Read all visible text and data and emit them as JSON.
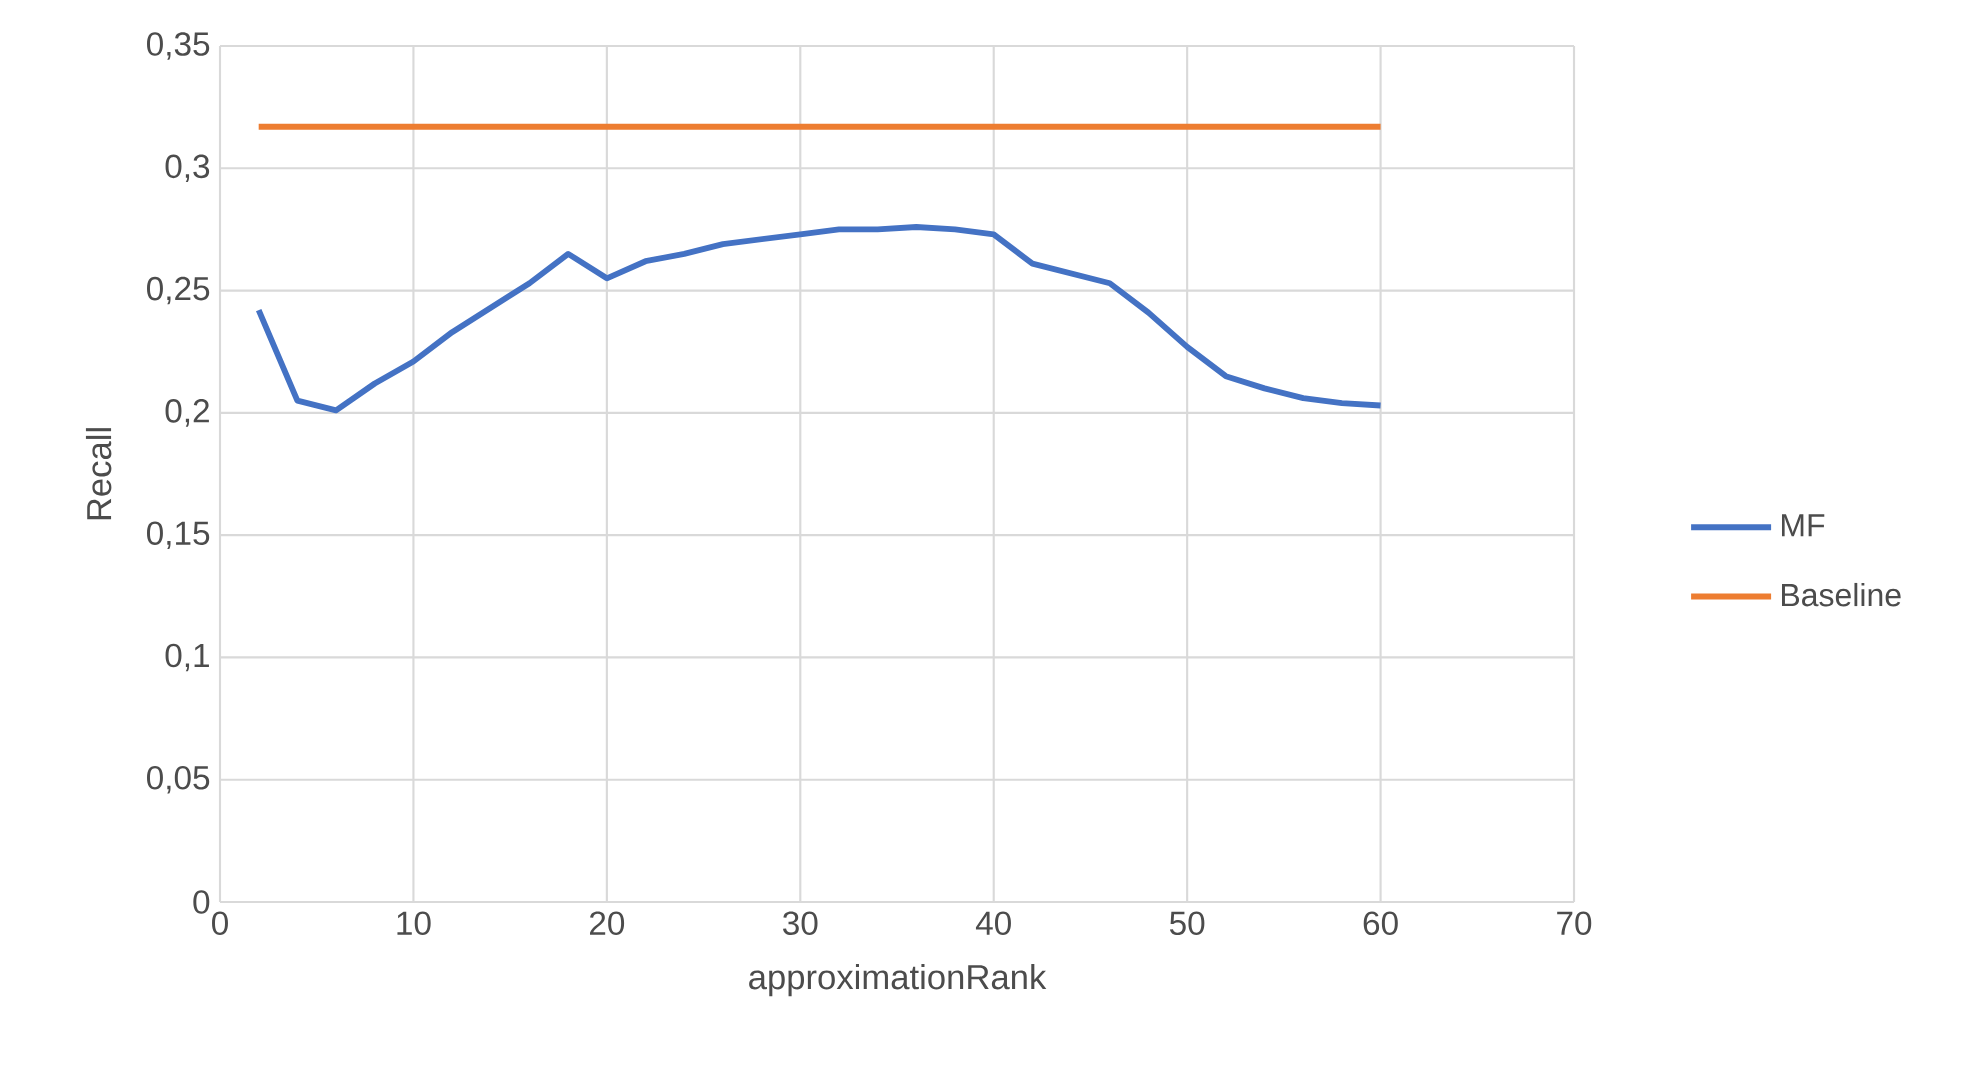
{
  "chart_data": {
    "type": "line",
    "xlabel": "approximationRank",
    "ylabel": "Recall",
    "xlim": [
      0,
      70
    ],
    "xticks": [
      0,
      10,
      20,
      30,
      40,
      50,
      60,
      70
    ],
    "ylim": [
      0,
      0.35
    ],
    "yticks": [
      {
        "value": 0,
        "label": "0"
      },
      {
        "value": 0.05,
        "label": "0,05"
      },
      {
        "value": 0.1,
        "label": "0,1"
      },
      {
        "value": 0.15,
        "label": "0,15"
      },
      {
        "value": 0.2,
        "label": "0,2"
      },
      {
        "value": 0.25,
        "label": "0,25"
      },
      {
        "value": 0.3,
        "label": "0,3"
      },
      {
        "value": 0.35,
        "label": "0,35"
      }
    ],
    "grid": true,
    "legend": "right",
    "marker": "none",
    "line_style": "solid",
    "series": [
      {
        "name": "MF",
        "color": "#4472c4",
        "x": [
          2,
          4,
          6,
          8,
          10,
          12,
          14,
          16,
          18,
          20,
          22,
          24,
          26,
          28,
          30,
          32,
          34,
          36,
          38,
          40,
          42,
          44,
          46,
          48,
          50,
          52,
          54,
          56,
          58,
          60
        ],
        "values": [
          0.242,
          0.205,
          0.201,
          0.212,
          0.221,
          0.233,
          0.243,
          0.253,
          0.265,
          0.255,
          0.262,
          0.265,
          0.269,
          0.271,
          0.273,
          0.275,
          0.275,
          0.276,
          0.275,
          0.273,
          0.261,
          0.257,
          0.253,
          0.241,
          0.227,
          0.215,
          0.21,
          0.206,
          0.204,
          0.203
        ]
      },
      {
        "name": "Baseline",
        "color": "#ed7d31",
        "x": [
          2,
          4,
          6,
          8,
          10,
          12,
          14,
          16,
          18,
          20,
          22,
          24,
          26,
          28,
          30,
          32,
          34,
          36,
          38,
          40,
          42,
          44,
          46,
          48,
          50,
          52,
          54,
          56,
          58,
          60
        ],
        "values": [
          0.317,
          0.317,
          0.317,
          0.317,
          0.317,
          0.317,
          0.317,
          0.317,
          0.317,
          0.317,
          0.317,
          0.317,
          0.317,
          0.317,
          0.317,
          0.317,
          0.317,
          0.317,
          0.317,
          0.317,
          0.317,
          0.317,
          0.317,
          0.317,
          0.317,
          0.317,
          0.317,
          0.317,
          0.317,
          0.317
        ]
      }
    ]
  }
}
